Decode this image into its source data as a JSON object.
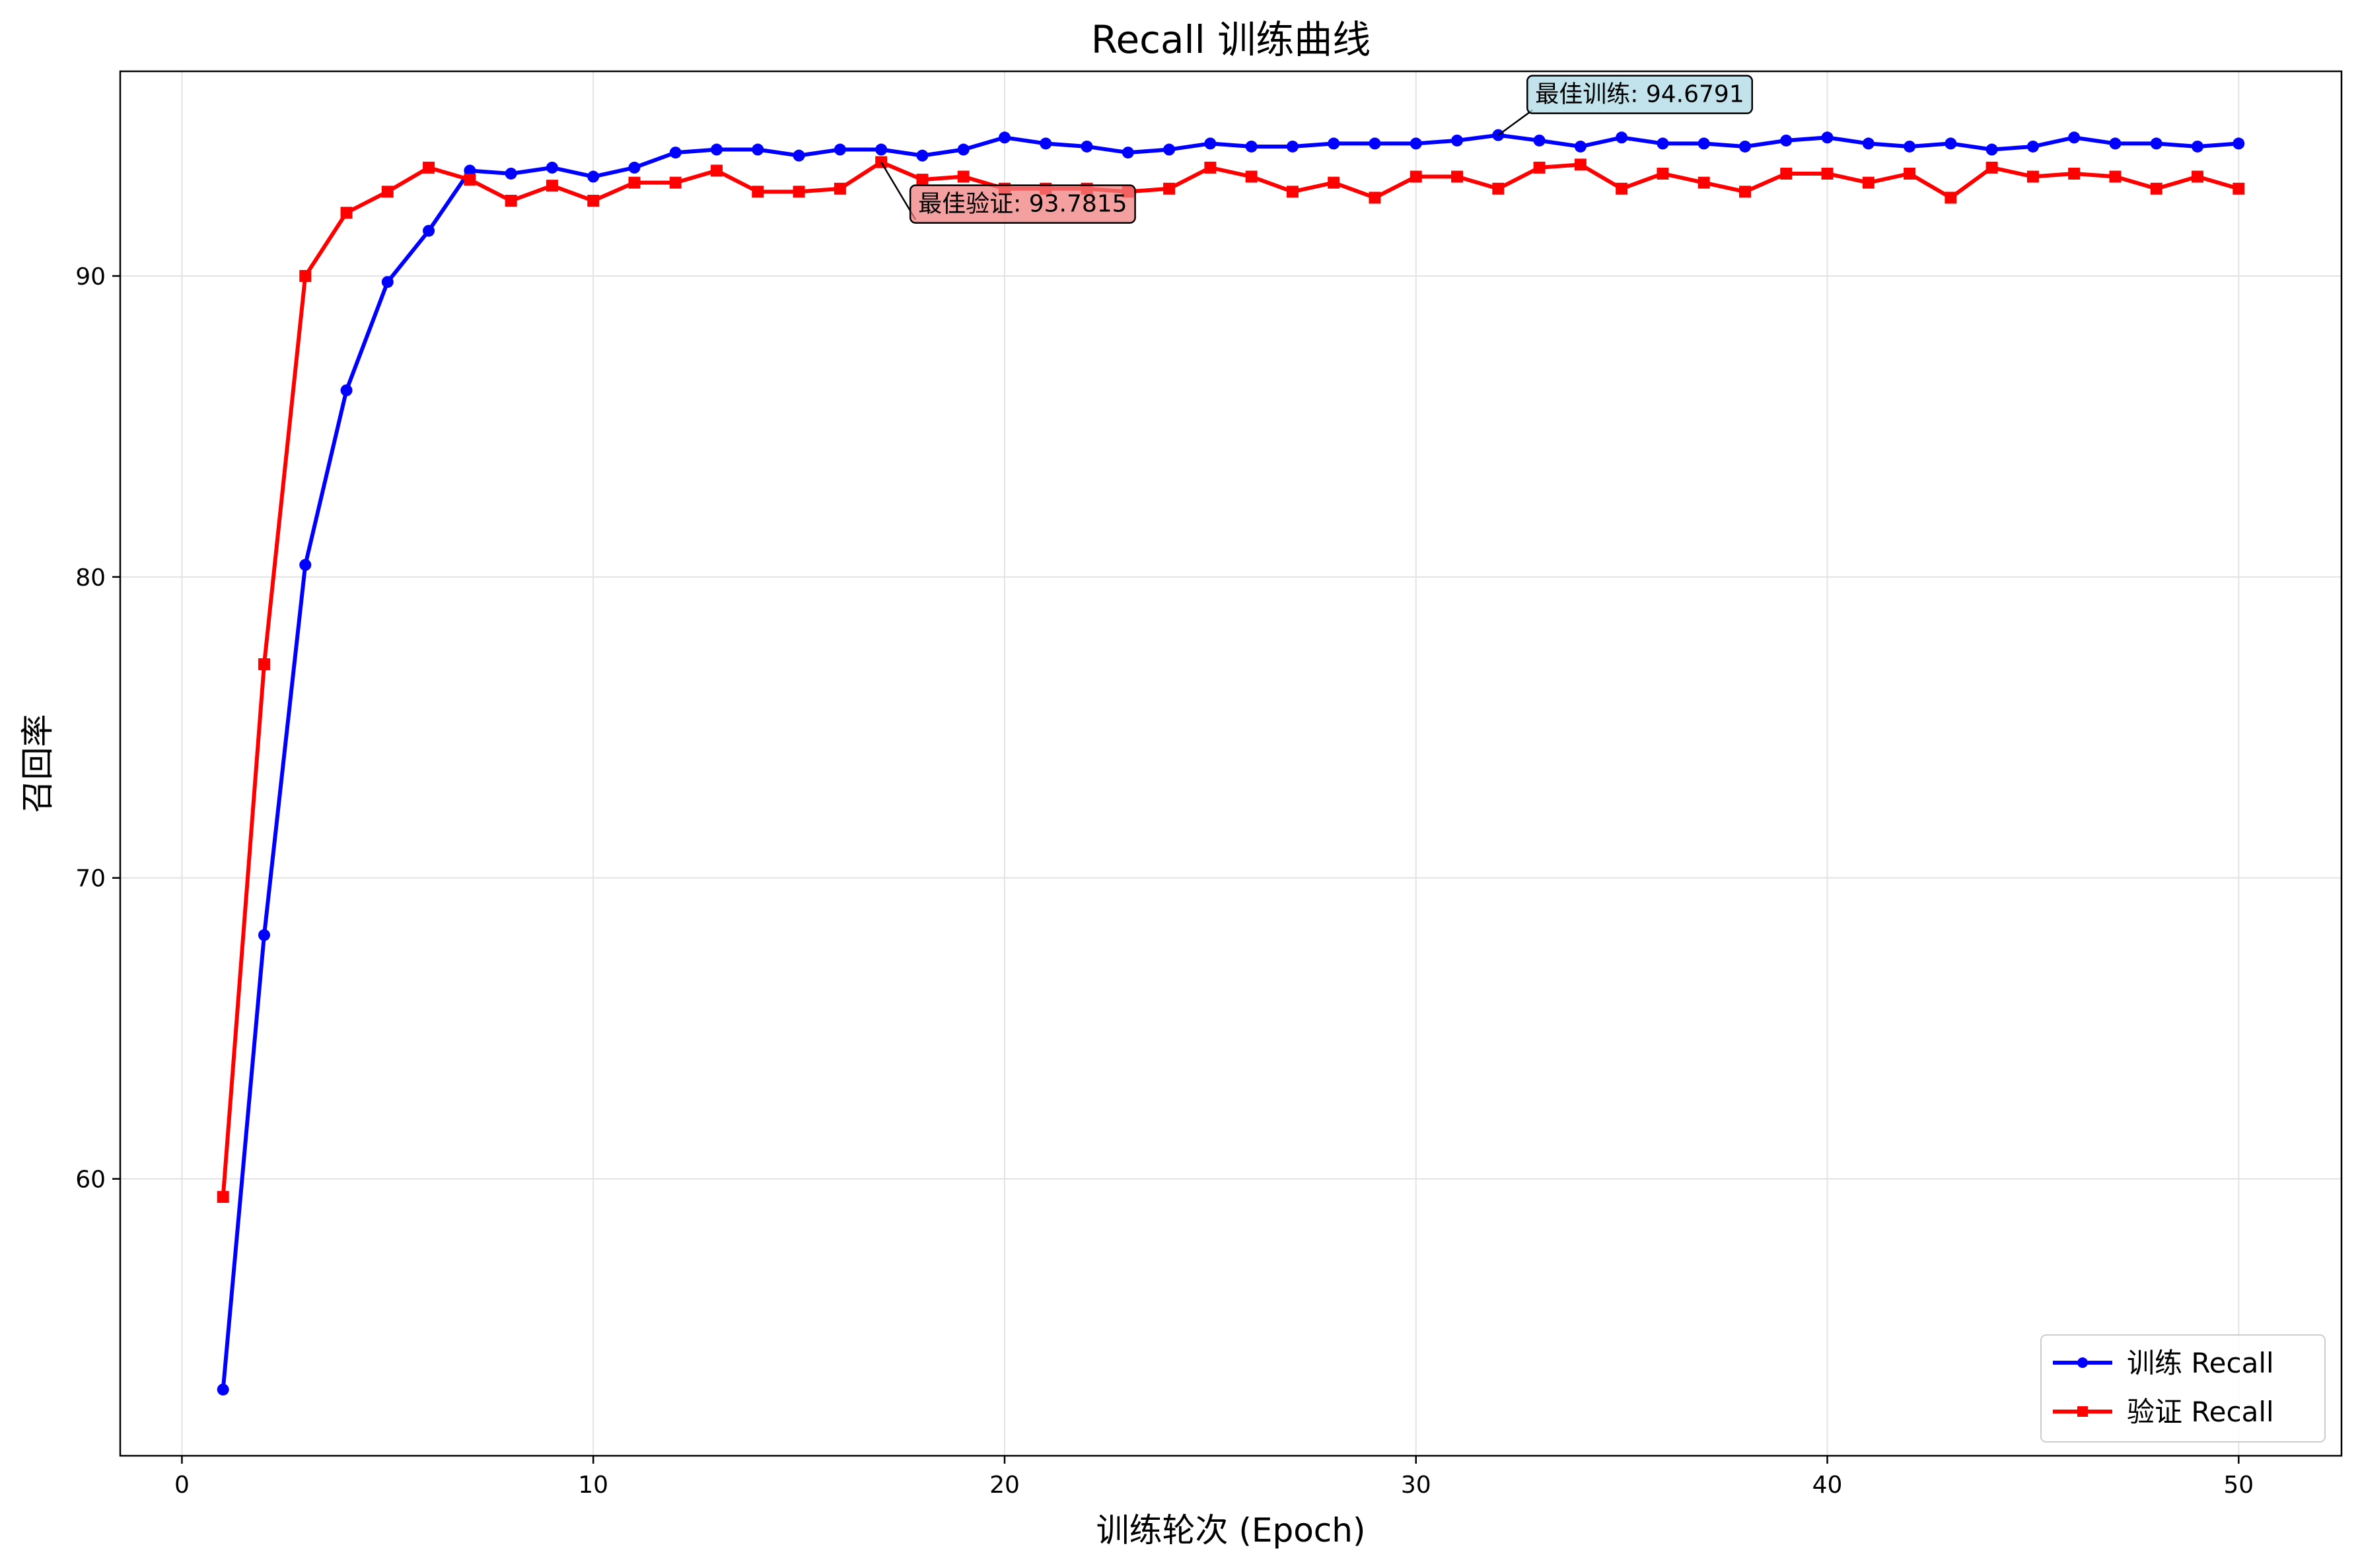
{
  "chart_data": {
    "type": "line",
    "title": "Recall 训练曲线",
    "xlabel": "训练轮次 (Epoch)",
    "ylabel": "召回率",
    "xlim": [
      -1.5,
      52.5
    ],
    "ylim": [
      50.8,
      96.8
    ],
    "xticks": [
      0,
      10,
      20,
      30,
      40,
      50
    ],
    "yticks": [
      60,
      70,
      80,
      90
    ],
    "grid": true,
    "legend_position": "lower-right",
    "x": [
      1,
      2,
      3,
      4,
      5,
      6,
      7,
      8,
      9,
      10,
      11,
      12,
      13,
      14,
      15,
      16,
      17,
      18,
      19,
      20,
      21,
      22,
      23,
      24,
      25,
      26,
      27,
      28,
      29,
      30,
      31,
      32,
      33,
      34,
      35,
      36,
      37,
      38,
      39,
      40,
      41,
      42,
      43,
      44,
      45,
      46,
      47,
      48,
      49,
      50
    ],
    "series": [
      {
        "name": "训练 Recall",
        "color": "#0000ff",
        "marker": "circle",
        "values": [
          53.0,
          68.1,
          80.4,
          86.2,
          89.8,
          91.5,
          93.5,
          93.4,
          93.6,
          93.3,
          93.6,
          94.1,
          94.2,
          94.2,
          94.0,
          94.2,
          94.2,
          94.0,
          94.2,
          94.6,
          94.4,
          94.3,
          94.1,
          94.2,
          94.4,
          94.3,
          94.3,
          94.4,
          94.4,
          94.4,
          94.5,
          94.6791,
          94.5,
          94.3,
          94.6,
          94.4,
          94.4,
          94.3,
          94.5,
          94.6,
          94.4,
          94.3,
          94.4,
          94.2,
          94.3,
          94.6,
          94.4,
          94.4,
          94.3,
          94.4
        ]
      },
      {
        "name": "验证 Recall",
        "color": "#ff0000",
        "marker": "square",
        "values": [
          59.4,
          77.1,
          90.0,
          92.1,
          92.8,
          93.6,
          93.2,
          92.5,
          93.0,
          92.5,
          93.1,
          93.1,
          93.5,
          92.8,
          92.8,
          92.9,
          93.7815,
          93.2,
          93.3,
          92.9,
          92.9,
          92.9,
          92.8,
          92.9,
          93.6,
          93.3,
          92.8,
          93.1,
          92.6,
          93.3,
          93.3,
          92.9,
          93.6,
          93.7,
          92.9,
          93.4,
          93.1,
          92.8,
          93.4,
          93.4,
          93.1,
          93.4,
          92.6,
          93.6,
          93.3,
          93.4,
          93.3,
          92.9,
          93.3,
          92.9
        ]
      }
    ],
    "annotations": [
      {
        "text": "最佳训练: 94.6791",
        "x": 32,
        "y": 94.6791,
        "box_color": "#add8e6"
      },
      {
        "text": "最佳验证: 93.7815",
        "x": 17,
        "y": 93.7815,
        "box_color": "#f08080"
      }
    ]
  }
}
